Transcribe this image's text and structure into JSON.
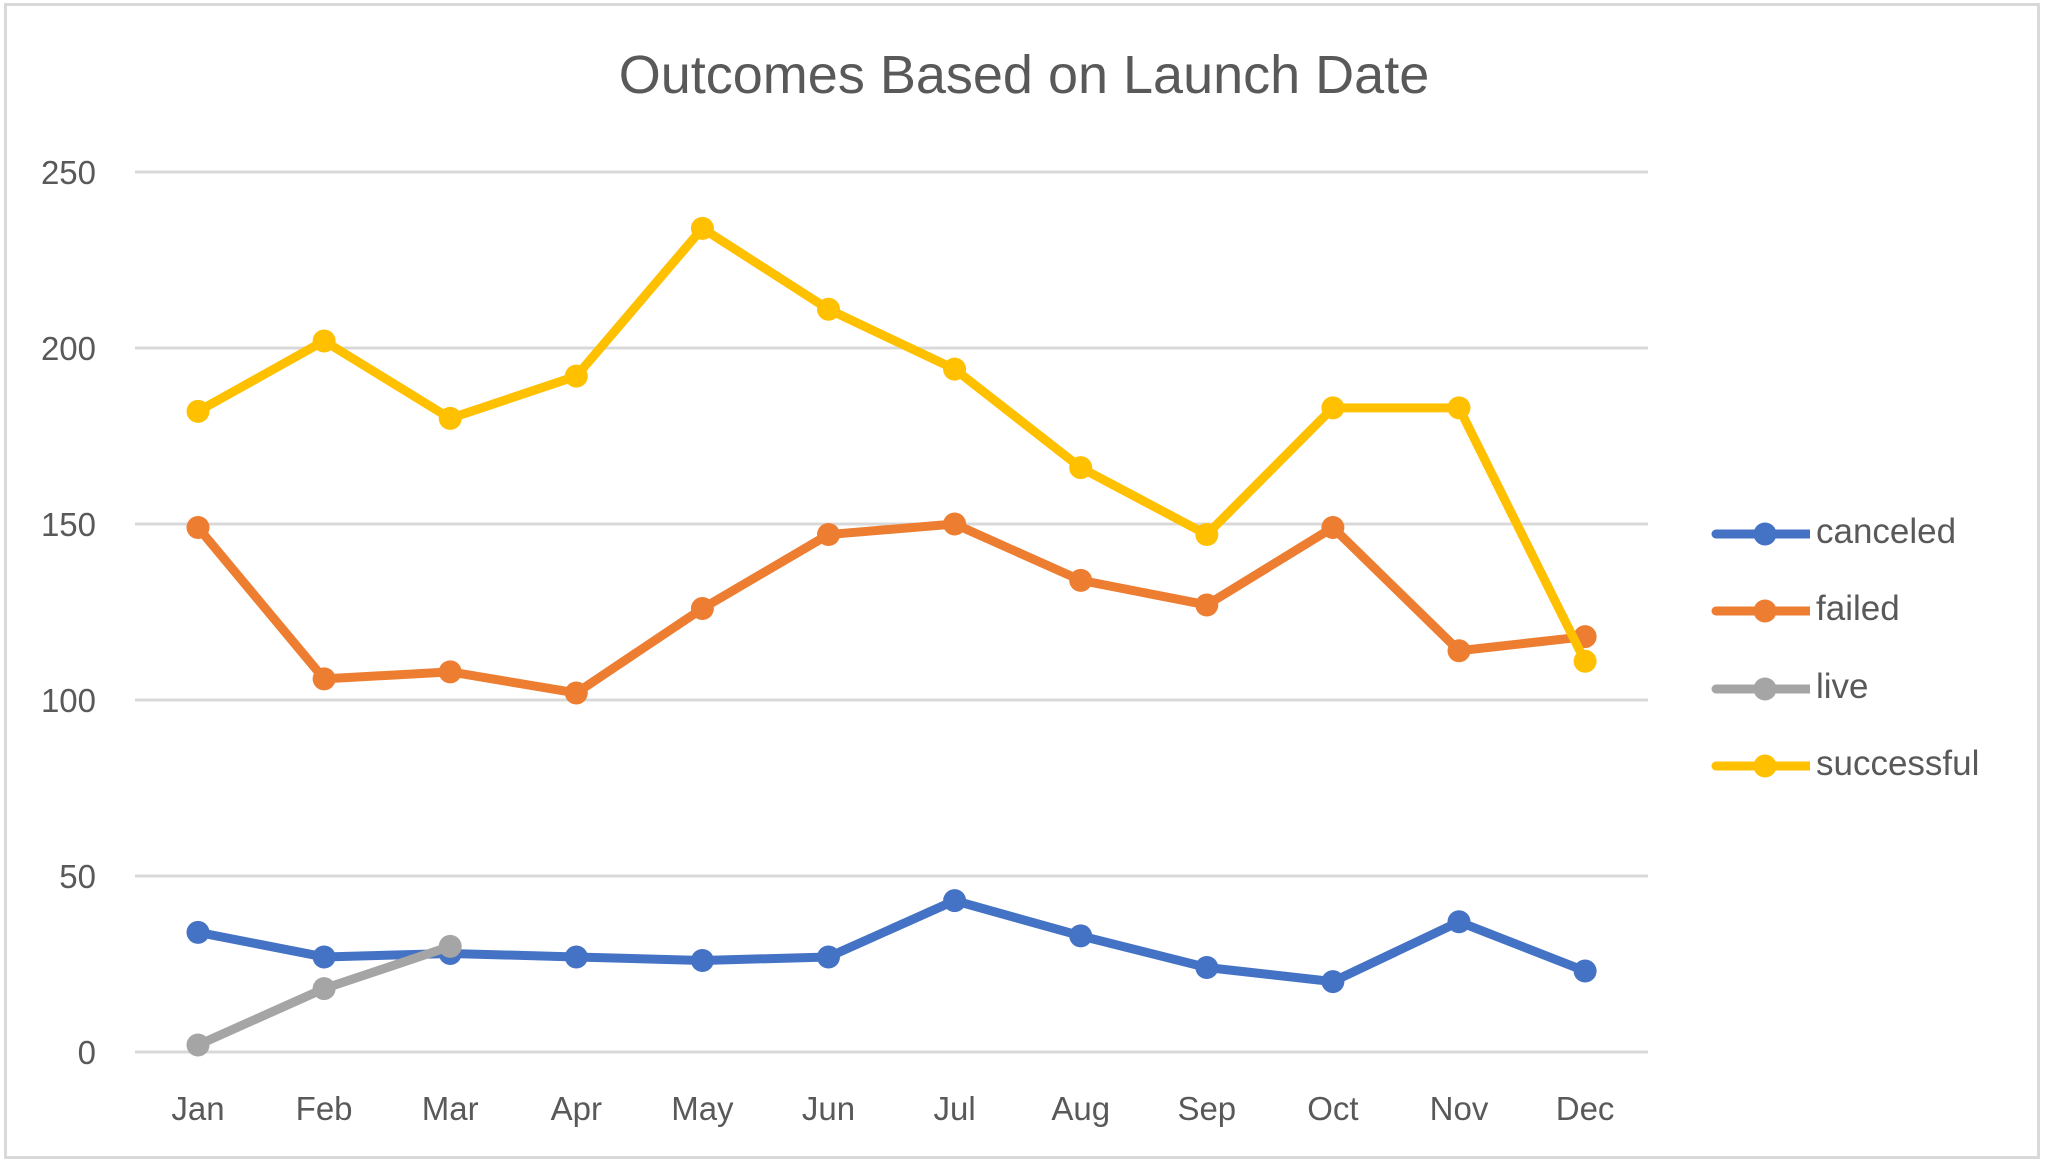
{
  "chart_data": {
    "type": "line",
    "title": "Outcomes Based on Launch Date",
    "xlabel": "",
    "ylabel": "",
    "categories": [
      "Jan",
      "Feb",
      "Mar",
      "Apr",
      "May",
      "Jun",
      "Jul",
      "Aug",
      "Sep",
      "Oct",
      "Nov",
      "Dec"
    ],
    "ylim": [
      0,
      250
    ],
    "yticks": [
      0,
      50,
      100,
      150,
      200,
      250
    ],
    "grid": true,
    "legend_position": "right",
    "series": [
      {
        "name": "canceled",
        "color": "#4472C4",
        "values": [
          34,
          27,
          28,
          27,
          26,
          27,
          43,
          33,
          24,
          20,
          37,
          23
        ]
      },
      {
        "name": "failed",
        "color": "#ED7D31",
        "values": [
          149,
          106,
          108,
          102,
          126,
          147,
          150,
          134,
          127,
          149,
          114,
          118
        ]
      },
      {
        "name": "live",
        "color": "#A5A5A5",
        "values": [
          2,
          18,
          30,
          null,
          null,
          null,
          null,
          null,
          null,
          null,
          null,
          null
        ]
      },
      {
        "name": "successful",
        "color": "#FFC000",
        "values": [
          182,
          202,
          180,
          192,
          234,
          211,
          194,
          166,
          147,
          183,
          183,
          111
        ]
      }
    ]
  }
}
